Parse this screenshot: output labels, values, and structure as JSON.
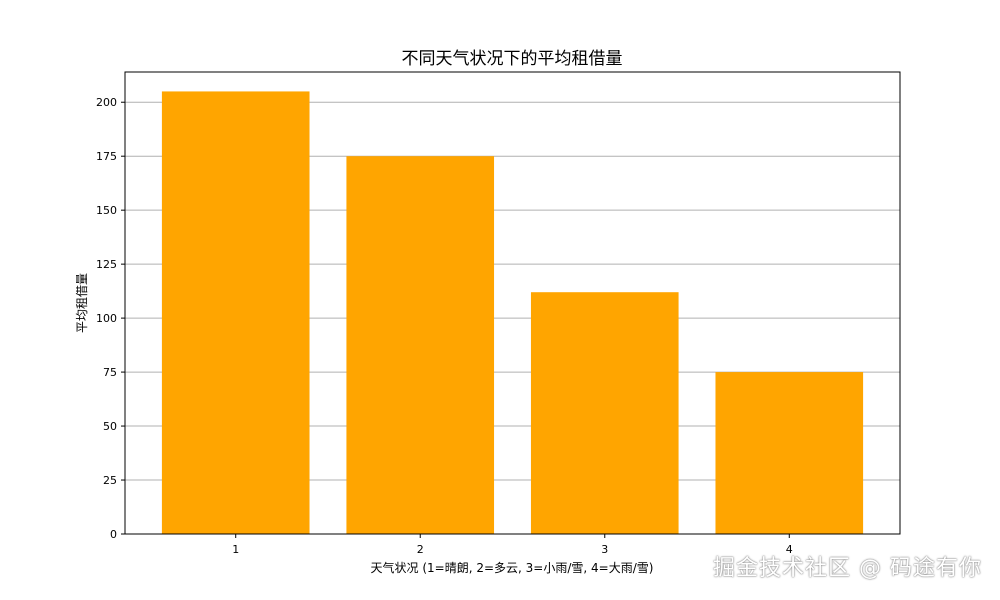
{
  "chart_data": {
    "type": "bar",
    "title": "不同天气状况下的平均租借量",
    "xlabel": "天气状况 (1=晴朗, 2=多云, 3=小雨/雪, 4=大雨/雪)",
    "ylabel": "平均租借量",
    "categories": [
      "1",
      "2",
      "3",
      "4"
    ],
    "values": [
      205,
      175,
      112,
      75
    ],
    "ylim": [
      0,
      214
    ],
    "yticks": [
      0,
      25,
      50,
      75,
      100,
      125,
      150,
      175,
      200
    ],
    "grid": "y",
    "bar_color": "#FFA500"
  },
  "watermark": "掘金技术社区 @ 码途有你"
}
